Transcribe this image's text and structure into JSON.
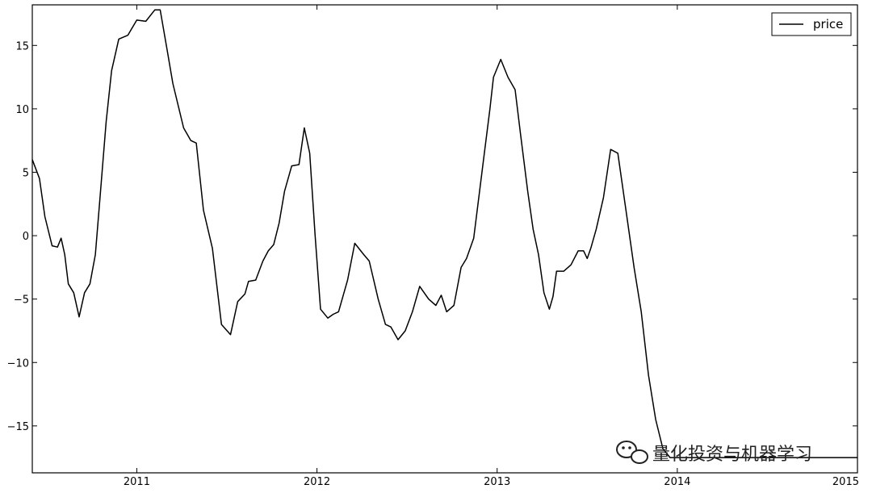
{
  "chart_data": {
    "type": "line",
    "title": "",
    "xlabel": "",
    "ylabel": "",
    "xlim": [
      2010.42,
      2015.0
    ],
    "ylim": [
      -18.7,
      18.2
    ],
    "grid": false,
    "legend": {
      "position": "top-right",
      "entries": [
        "price"
      ]
    },
    "x_ticks": [
      2011,
      2012,
      2013,
      2014,
      2015
    ],
    "x_tick_labels": [
      "2011",
      "2012",
      "2013",
      "2014",
      "2015"
    ],
    "y_ticks": [
      15,
      10,
      5,
      0,
      -5,
      -10,
      -15
    ],
    "y_tick_labels": [
      "15",
      "10",
      "5",
      "0",
      "−5",
      "−10",
      "−15"
    ],
    "series": [
      {
        "name": "price",
        "color": "#000000",
        "x": [
          2010.42,
          2010.46,
          2010.49,
          2010.53,
          2010.56,
          2010.58,
          2010.6,
          2010.62,
          2010.65,
          2010.68,
          2010.71,
          2010.74,
          2010.77,
          2010.79,
          2010.83,
          2010.86,
          2010.9,
          2010.95,
          2011.0,
          2011.05,
          2011.1,
          2011.13,
          2011.17,
          2011.2,
          2011.26,
          2011.3,
          2011.33,
          2011.37,
          2011.42,
          2011.47,
          2011.52,
          2011.56,
          2011.6,
          2011.62,
          2011.66,
          2011.7,
          2011.73,
          2011.76,
          2011.79,
          2011.82,
          2011.86,
          2011.9,
          2011.93,
          2011.96,
          2011.99,
          2012.02,
          2012.06,
          2012.09,
          2012.12,
          2012.17,
          2012.21,
          2012.26,
          2012.29,
          2012.34,
          2012.38,
          2012.41,
          2012.45,
          2012.49,
          2012.53,
          2012.57,
          2012.62,
          2012.66,
          2012.69,
          2012.72,
          2012.76,
          2012.8,
          2012.83,
          2012.87,
          2012.92,
          2012.96,
          2012.98,
          2013.02,
          2013.06,
          2013.1,
          2013.13,
          2013.17,
          2013.2,
          2013.23,
          2013.26,
          2013.29,
          2013.31,
          2013.33,
          2013.37,
          2013.41,
          2013.45,
          2013.48,
          2013.5,
          2013.52,
          2013.55,
          2013.59,
          2013.63,
          2013.67,
          2013.72,
          2013.76,
          2013.8,
          2013.84,
          2013.88,
          2013.92,
          2013.96,
          2013.99,
          2014.02,
          2014.05,
          2014.1,
          2014.14,
          2014.18,
          2014.22,
          2014.26,
          2014.3,
          2014.33,
          2014.36,
          2014.4,
          2014.44,
          2014.48,
          2014.51,
          2014.54,
          2014.57,
          2014.6,
          2014.65,
          2014.7,
          2014.75,
          2014.79,
          2014.83,
          2014.87,
          2014.92,
          2014.96,
          2015.0
        ],
        "y": [
          6.0,
          4.5,
          1.5,
          -0.8,
          -0.9,
          -0.2,
          -1.5,
          -3.8,
          -4.5,
          -6.4,
          -4.5,
          -3.8,
          -1.5,
          2.0,
          9.0,
          13.0,
          15.5,
          15.8,
          17.0,
          16.9,
          17.8,
          17.8,
          14.5,
          12.0,
          8.5,
          7.5,
          7.3,
          2.0,
          -1.0,
          -7.0,
          -7.8,
          -5.2,
          -4.6,
          -3.6,
          -3.5,
          -2.0,
          -1.2,
          -0.7,
          1.0,
          3.5,
          5.5,
          5.6,
          8.5,
          6.5,
          0.0,
          -5.8,
          -6.5,
          -6.2,
          -6.0,
          -3.5,
          -0.6,
          -1.5,
          -2.0,
          -5.0,
          -7.0,
          -7.2,
          -8.2,
          -7.5,
          -6.0,
          -4.0,
          -5.0,
          -5.5,
          -4.7,
          -6.0,
          -5.5,
          -2.5,
          -1.8,
          -0.2,
          5.5,
          10.0,
          12.5,
          13.9,
          12.5,
          11.5,
          8.0,
          3.5,
          0.5,
          -1.5,
          -4.5,
          -5.8,
          -4.8,
          -2.8,
          -2.8,
          -2.3,
          -1.2,
          -1.2,
          -1.8,
          -1.0,
          0.5,
          3.0,
          6.8,
          6.5,
          1.5,
          -2.5,
          -6.0,
          -11.0,
          -14.5,
          -16.8,
          -17.5,
          -17.5,
          -17.5,
          -17.5,
          -17.5,
          -17.5,
          -17.5,
          -17.5,
          -17.5,
          -17.5,
          -17.5,
          -17.5,
          -17.5,
          -17.5,
          -17.5,
          -17.5,
          -17.5,
          -17.5,
          -17.5,
          -17.5,
          -17.5,
          -17.5,
          -17.5,
          -17.5,
          -17.5,
          -17.5,
          -17.5,
          -17.5
        ]
      }
    ]
  },
  "watermark": {
    "text": "量化投资与机器学习",
    "icon": "wechat-icon"
  }
}
